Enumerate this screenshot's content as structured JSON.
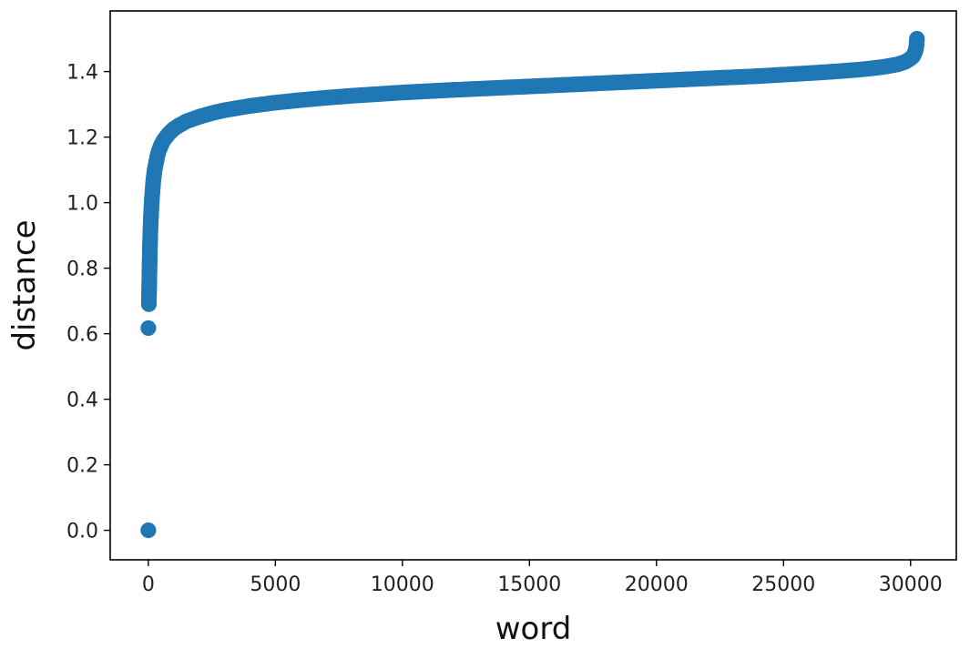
{
  "chart_data": {
    "type": "scatter",
    "title": "",
    "xlabel": "word",
    "ylabel": "distance",
    "xlim": [
      -1500,
      31800
    ],
    "ylim": [
      -0.09,
      1.585
    ],
    "xticks": [
      0,
      5000,
      10000,
      15000,
      20000,
      25000,
      30000
    ],
    "xtick_labels": [
      "0",
      "5000",
      "10000",
      "15000",
      "20000",
      "25000",
      "30000"
    ],
    "yticks": [
      0.0,
      0.2,
      0.4,
      0.6,
      0.8,
      1.0,
      1.2,
      1.4
    ],
    "ytick_labels": [
      "0.0",
      "0.2",
      "0.4",
      "0.6",
      "0.8",
      "1.0",
      "1.2",
      "1.4"
    ],
    "grid": false,
    "marker_color": "#1f77b4",
    "series": [
      {
        "x": [
          0,
          1,
          20,
          25,
          30,
          35,
          40,
          45,
          50,
          55,
          60,
          70,
          80,
          90,
          100,
          120,
          140,
          160,
          180,
          200,
          250,
          300,
          350,
          400,
          500,
          600,
          700,
          800,
          1000,
          1200,
          1500,
          2000,
          2500,
          3000,
          4000,
          5000,
          6000,
          7000,
          8000,
          9000,
          10000,
          12000,
          14000,
          16000,
          18000,
          20000,
          22000,
          24000,
          26000,
          27000,
          28000,
          28500,
          29000,
          29500,
          29800,
          30000,
          30100,
          30150,
          30200,
          30230,
          30250
        ],
        "y": [
          0.0,
          0.617,
          0.69,
          0.71,
          0.73,
          0.75,
          0.77,
          0.79,
          0.81,
          0.83,
          0.85,
          0.88,
          0.91,
          0.93,
          0.95,
          0.98,
          1.01,
          1.03,
          1.05,
          1.07,
          1.1,
          1.12,
          1.14,
          1.155,
          1.175,
          1.19,
          1.2,
          1.21,
          1.225,
          1.235,
          1.248,
          1.262,
          1.273,
          1.282,
          1.295,
          1.305,
          1.313,
          1.32,
          1.326,
          1.331,
          1.336,
          1.344,
          1.351,
          1.358,
          1.365,
          1.372,
          1.379,
          1.386,
          1.395,
          1.4,
          1.406,
          1.41,
          1.415,
          1.422,
          1.43,
          1.44,
          1.447,
          1.455,
          1.465,
          1.478,
          1.5
        ]
      }
    ]
  }
}
